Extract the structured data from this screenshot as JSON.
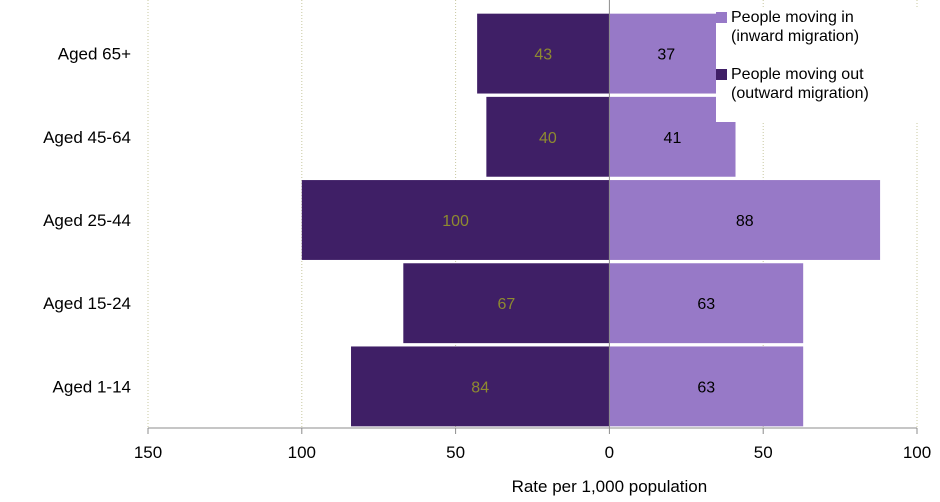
{
  "chart_data": {
    "type": "bar",
    "orientation": "horizontal",
    "layout": "diverging",
    "title": "",
    "xlabel": "Rate per 1,000 population",
    "ylabel": "",
    "xlim": [
      -150,
      100
    ],
    "xticks": [
      -150,
      -100,
      -50,
      0,
      50,
      100
    ],
    "xtick_labels": [
      "150",
      "100",
      "50",
      "0",
      "50",
      "100"
    ],
    "grid": "vertical dotted",
    "legend_position": "top-right",
    "categories": [
      "Aged 65+",
      "Aged 45-64",
      "Aged 25-44",
      "Aged 15-24",
      "Aged 1-14"
    ],
    "series": [
      {
        "name": "People moving in (inward migration)",
        "legend_lines": [
          "People moving in",
          "(inward migration)"
        ],
        "values": [
          37,
          41,
          88,
          63,
          63
        ],
        "color": "#9779c7",
        "label_color": "#000000"
      },
      {
        "name": "People moving out (outward migration)",
        "legend_lines": [
          "People moving out",
          "(outward migration)"
        ],
        "values": [
          43,
          40,
          100,
          67,
          84
        ],
        "color": "#3f1f66",
        "label_color": "#8e8a30"
      }
    ]
  }
}
